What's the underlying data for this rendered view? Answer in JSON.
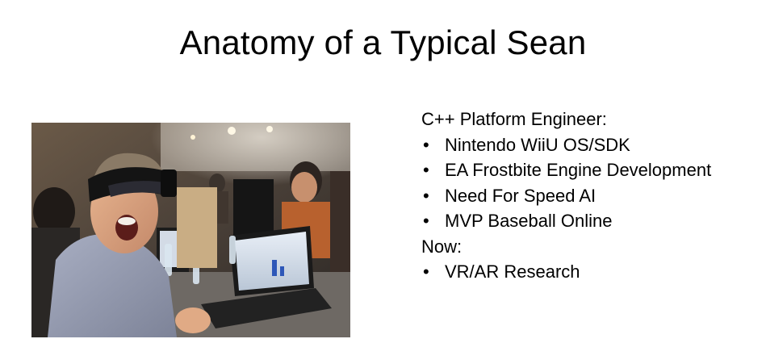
{
  "slide": {
    "title": "Anatomy of a Typical Sean",
    "photo": {
      "subject": "photo-person-vr-headset"
    },
    "sections": [
      {
        "heading": "C++ Platform Engineer:",
        "items": [
          "Nintendo WiiU OS/SDK",
          "EA Frostbite Engine Development",
          "Need For Speed AI",
          "MVP Baseball Online"
        ]
      },
      {
        "heading": "Now:",
        "items": [
          "VR/AR Research"
        ]
      }
    ],
    "bullet_glyph": "•"
  }
}
